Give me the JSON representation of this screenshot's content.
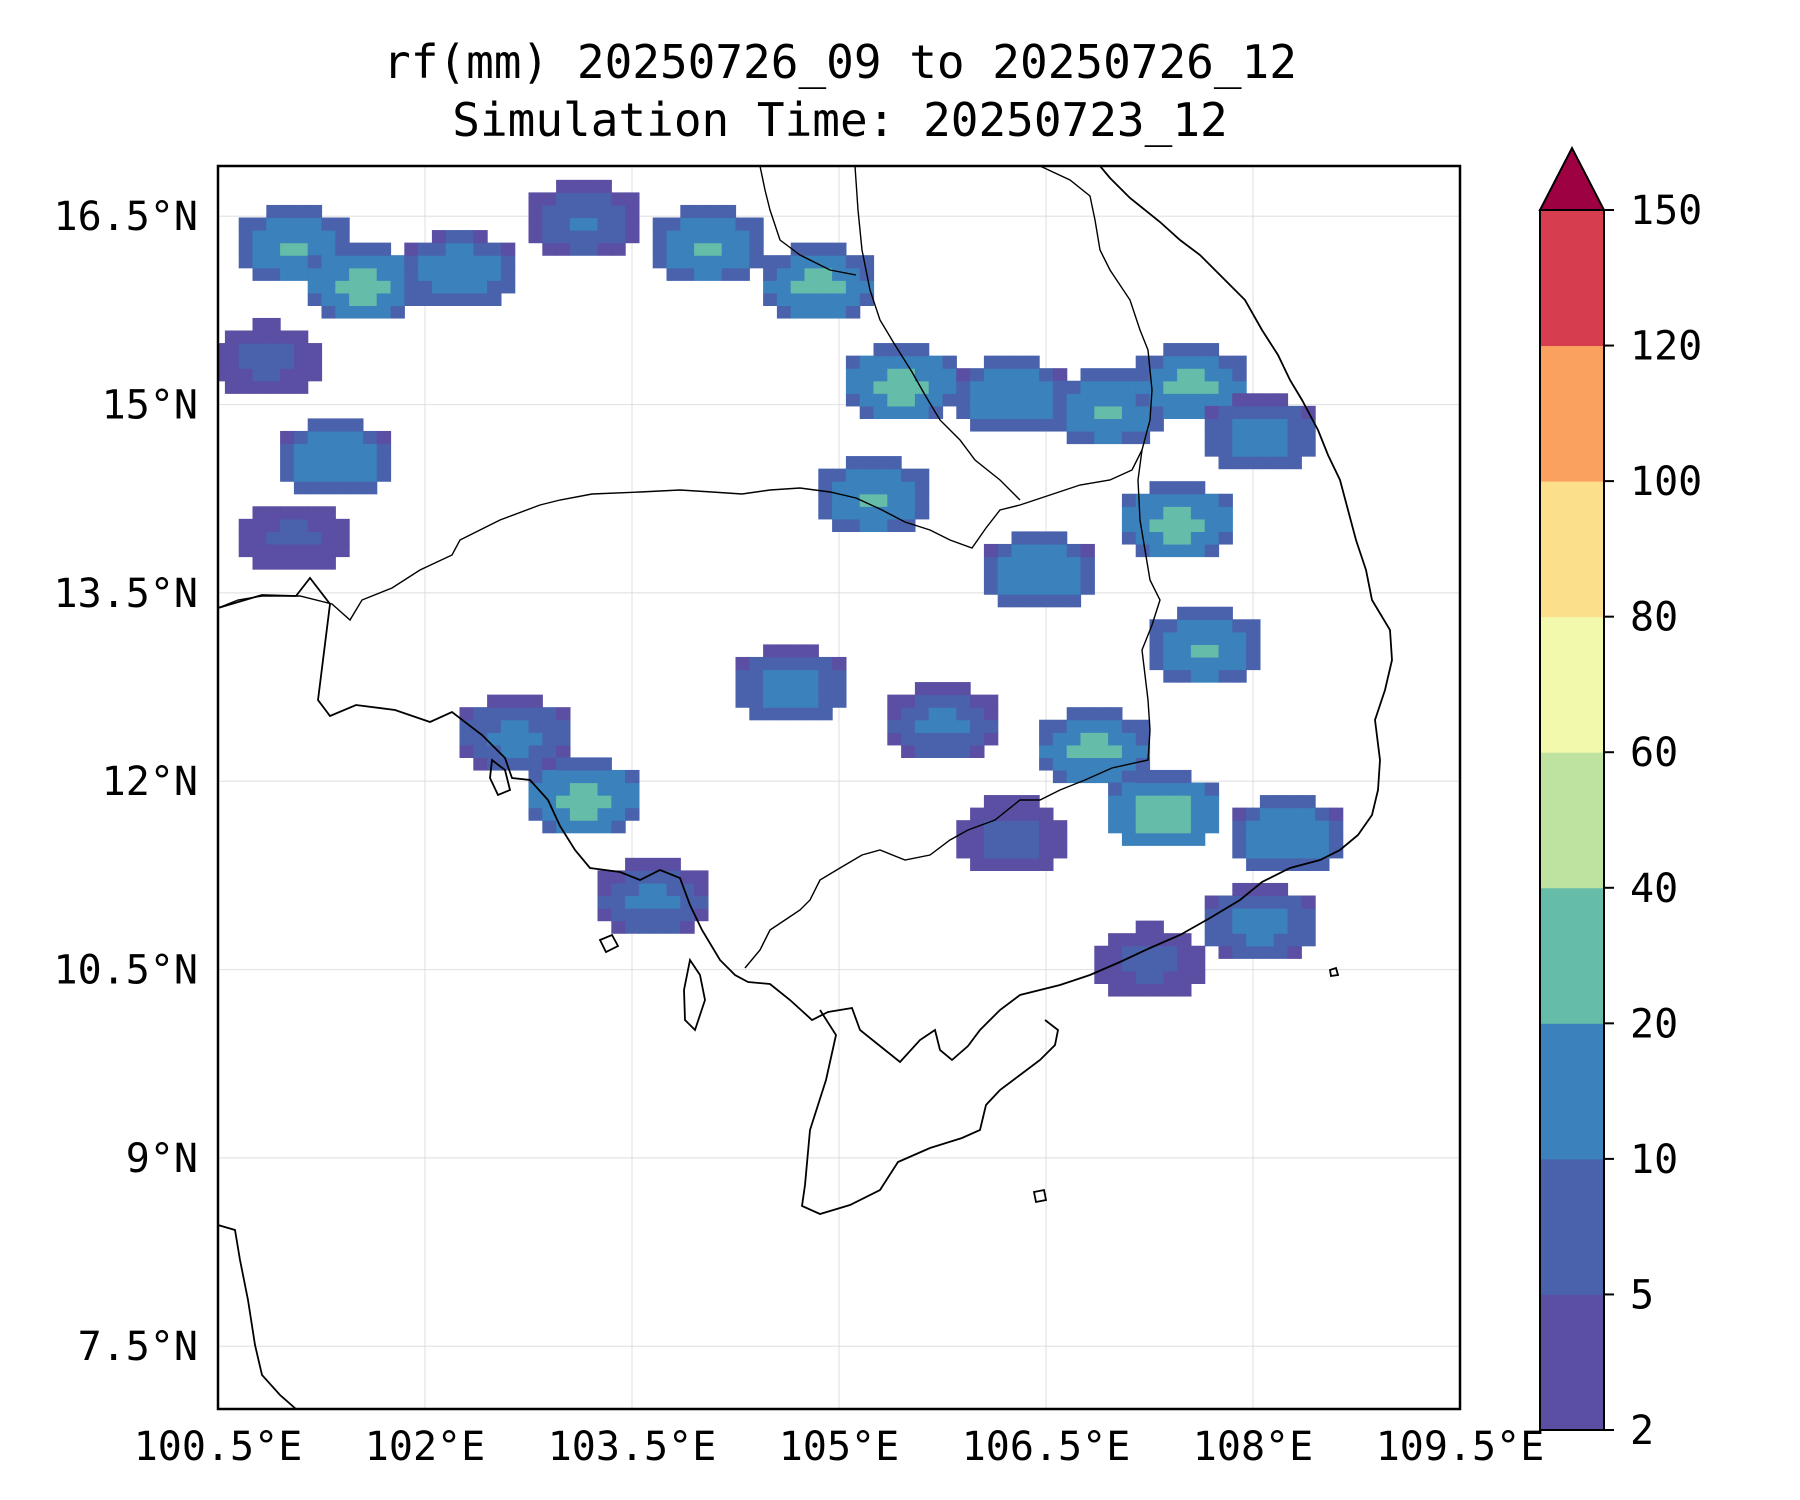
{
  "title": {
    "line1": "rf(mm) 20250726_09 to 20250726_12",
    "line2": "Simulation Time: 20250723_12"
  },
  "map": {
    "lon_range": [
      100.5,
      109.5
    ],
    "lat_range": [
      7.0,
      16.9
    ],
    "x_ticks": [
      {
        "value": 100.5,
        "label": "100.5°E"
      },
      {
        "value": 102.0,
        "label": "102°E"
      },
      {
        "value": 103.5,
        "label": "103.5°E"
      },
      {
        "value": 105.0,
        "label": "105°E"
      },
      {
        "value": 106.5,
        "label": "106.5°E"
      },
      {
        "value": 108.0,
        "label": "108°E"
      },
      {
        "value": 109.5,
        "label": "109.5°E"
      }
    ],
    "y_ticks": [
      {
        "value": 16.5,
        "label": "16.5°N"
      },
      {
        "value": 15.0,
        "label": "15°N"
      },
      {
        "value": 13.5,
        "label": "13.5°N"
      },
      {
        "value": 12.0,
        "label": "12°N"
      },
      {
        "value": 10.5,
        "label": "10.5°N"
      },
      {
        "value": 9.0,
        "label": "9°N"
      },
      {
        "value": 7.5,
        "label": "7.5°N"
      }
    ],
    "grid": true
  },
  "colorbar": {
    "levels": [
      2,
      5,
      10,
      20,
      40,
      60,
      80,
      100,
      120,
      150
    ],
    "labels": [
      "2",
      "5",
      "10",
      "20",
      "40",
      "60",
      "80",
      "100",
      "120",
      "150"
    ],
    "colors": [
      "#5a4fa2",
      "#4a62ac",
      "#3b82bc",
      "#64bca9",
      "#bee3a0",
      "#f2f8ac",
      "#fbdf8a",
      "#fba15f",
      "#d63e4f"
    ],
    "extend_color": "#9e0142",
    "extend": "max"
  },
  "chart_data": {
    "type": "heatmap",
    "variable": "rf(mm)",
    "units": "mm",
    "period": "20250726_09 to 20250726_12",
    "simulation_time": "20250723_12",
    "cells": [
      {
        "lon": 101.0,
        "lat": 16.2,
        "value": 25
      },
      {
        "lon": 101.5,
        "lat": 15.9,
        "value": 30
      },
      {
        "lon": 102.2,
        "lat": 16.0,
        "value": 20
      },
      {
        "lon": 100.8,
        "lat": 15.3,
        "value": 8
      },
      {
        "lon": 101.3,
        "lat": 14.5,
        "value": 22
      },
      {
        "lon": 101.0,
        "lat": 13.9,
        "value": 7
      },
      {
        "lon": 103.1,
        "lat": 16.4,
        "value": 12
      },
      {
        "lon": 104.0,
        "lat": 16.2,
        "value": 25
      },
      {
        "lon": 104.8,
        "lat": 15.9,
        "value": 28
      },
      {
        "lon": 105.4,
        "lat": 15.1,
        "value": 30
      },
      {
        "lon": 106.2,
        "lat": 15.0,
        "value": 22
      },
      {
        "lon": 106.9,
        "lat": 14.9,
        "value": 25
      },
      {
        "lon": 107.5,
        "lat": 15.1,
        "value": 28
      },
      {
        "lon": 108.0,
        "lat": 14.7,
        "value": 18
      },
      {
        "lon": 105.2,
        "lat": 14.2,
        "value": 25
      },
      {
        "lon": 106.4,
        "lat": 13.6,
        "value": 22
      },
      {
        "lon": 107.4,
        "lat": 14.0,
        "value": 30
      },
      {
        "lon": 107.6,
        "lat": 13.0,
        "value": 25
      },
      {
        "lon": 104.6,
        "lat": 12.7,
        "value": 18
      },
      {
        "lon": 105.7,
        "lat": 12.4,
        "value": 14
      },
      {
        "lon": 106.8,
        "lat": 12.2,
        "value": 28
      },
      {
        "lon": 107.3,
        "lat": 11.7,
        "value": 35
      },
      {
        "lon": 108.2,
        "lat": 11.5,
        "value": 22
      },
      {
        "lon": 106.2,
        "lat": 11.5,
        "value": 9
      },
      {
        "lon": 102.6,
        "lat": 12.3,
        "value": 15
      },
      {
        "lon": 103.1,
        "lat": 11.8,
        "value": 30
      },
      {
        "lon": 103.6,
        "lat": 11.0,
        "value": 14
      },
      {
        "lon": 108.0,
        "lat": 10.8,
        "value": 16
      },
      {
        "lon": 107.2,
        "lat": 10.5,
        "value": 8
      }
    ]
  }
}
